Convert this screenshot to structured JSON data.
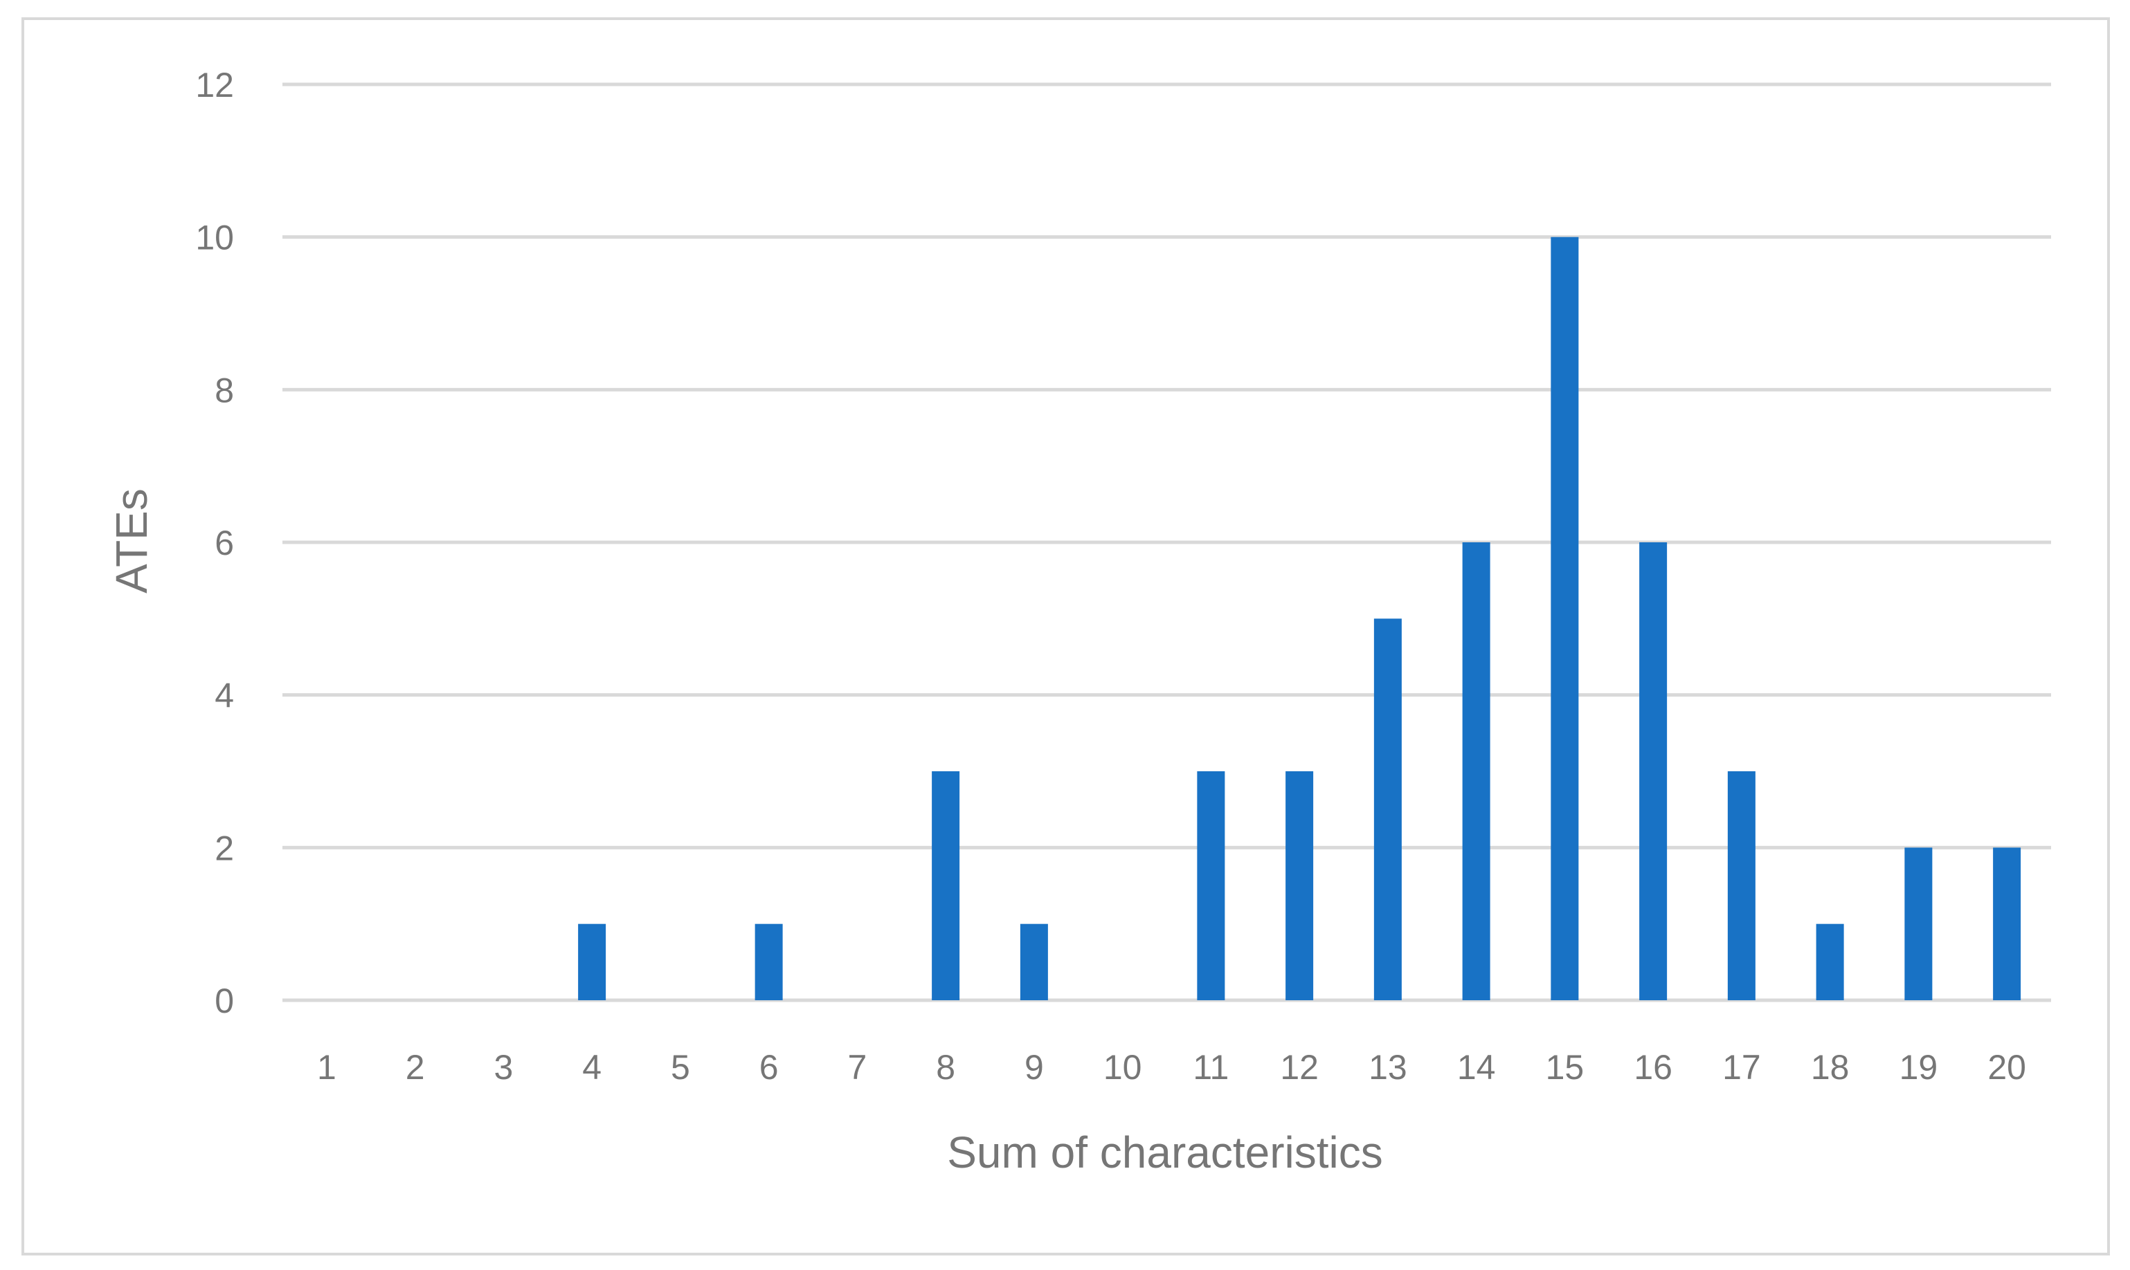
{
  "chart_data": {
    "type": "bar",
    "title": "",
    "xlabel": "Sum of characteristics",
    "ylabel": "ATEs",
    "categories": [
      "1",
      "2",
      "3",
      "4",
      "5",
      "6",
      "7",
      "8",
      "9",
      "10",
      "11",
      "12",
      "13",
      "14",
      "15",
      "16",
      "17",
      "18",
      "19",
      "20"
    ],
    "series": [
      {
        "values": [
          0,
          0,
          0,
          1,
          0,
          1,
          0,
          3,
          1,
          0,
          3,
          3,
          5,
          6,
          10,
          6,
          3,
          1,
          2,
          2
        ],
        "color": "#1872C5"
      }
    ],
    "ylim": [
      0,
      12
    ],
    "yticks": [
      0,
      2,
      4,
      6,
      8,
      10,
      12
    ],
    "grid": true,
    "legend": "none"
  },
  "colors": {
    "bar": "#1872C5",
    "gridline": "#D9D9D9",
    "text": "#767676",
    "frame": "#D9D9D9"
  }
}
